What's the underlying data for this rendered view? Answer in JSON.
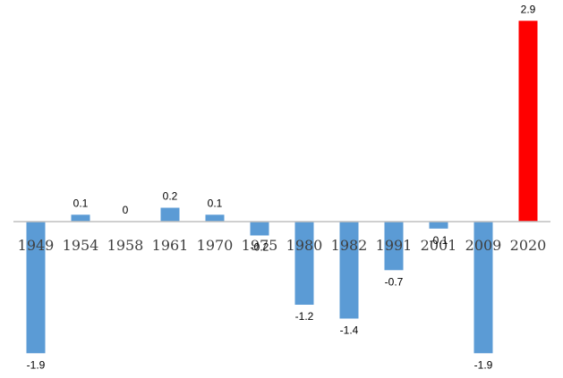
{
  "chart_data": {
    "type": "bar",
    "categories": [
      "1949",
      "1954",
      "1958",
      "1961",
      "1970",
      "1975",
      "1980",
      "1982",
      "1991",
      "2001",
      "2009",
      "2020"
    ],
    "values": [
      -1.9,
      0.1,
      0,
      0.2,
      0.1,
      -0.2,
      -1.2,
      -1.4,
      -0.7,
      -0.1,
      -1.9,
      2.9
    ],
    "data_labels": [
      "-1.9",
      "0.1",
      "0",
      "0.2",
      "0.1",
      "-0.2",
      "-1.2",
      "-1.4",
      "-0.7",
      "-0.1",
      "-1.9",
      "2.9"
    ],
    "ylim": [
      -1.9,
      2.9
    ],
    "grid": false,
    "legend": "none",
    "colors": {
      "default_bar": "#5b9bd5",
      "highlight_bar": "#ff0000",
      "axis": "#bfbfbf"
    },
    "highlight_index": 11
  }
}
